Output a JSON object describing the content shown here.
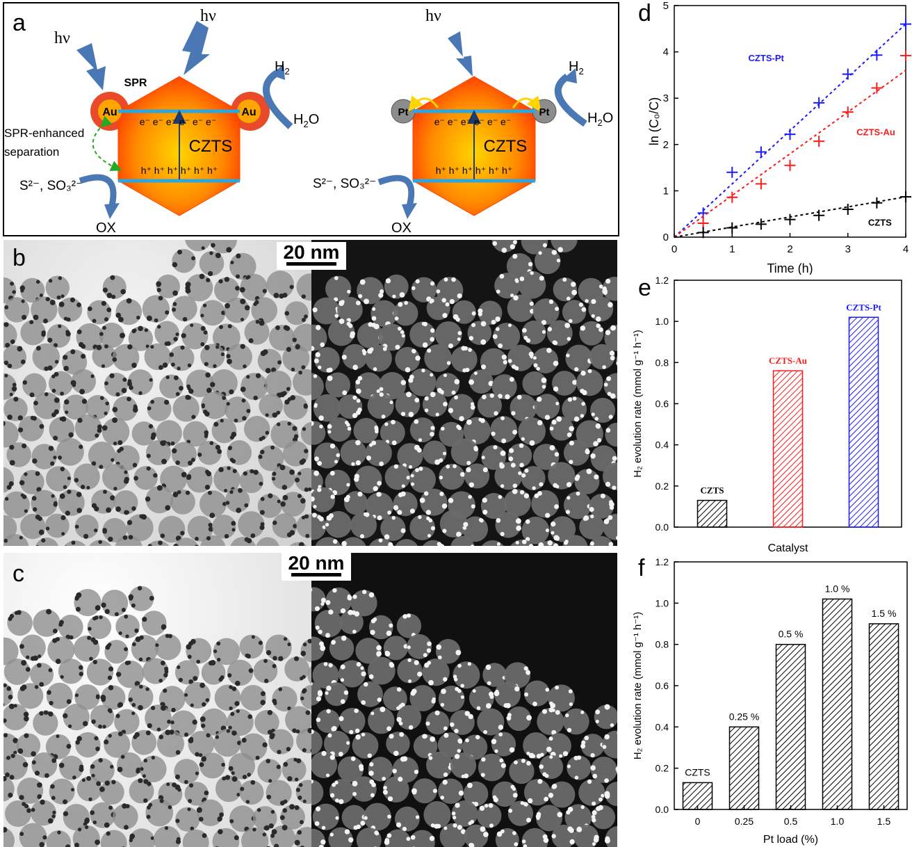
{
  "panels": {
    "a": "a",
    "b": "b",
    "c": "c",
    "d": "d",
    "e": "e",
    "f": "f"
  },
  "schematic": {
    "hv": "hν",
    "spr": "SPR",
    "au": "Au",
    "pt": "Pt",
    "h2": "H",
    "h2_sub": "2",
    "h2o": "H",
    "h2o_sub": "2",
    "h2o_tail": "O",
    "czts": "CZTS",
    "electrons": "e⁻  e⁻  e⁻   e⁻  e⁻  e⁻",
    "holes": "h⁺ h⁺ h⁺   h⁺ h⁺ h⁺",
    "spr_line1": "SPR-enhanced",
    "spr_line2": "separation",
    "sulfide": "S²⁻, SO₃²⁻",
    "ox": "OX"
  },
  "scale_bar": "20 nm",
  "colors": {
    "blue": "#1a1aff",
    "red": "#ff1a1a",
    "black": "#000000",
    "hex_orange": "#ff6a00",
    "au_orange": "#ff9900",
    "pt_grey": "#8c8c8c",
    "band_blue": "#2aa7e0",
    "arrow_blue": "#4a78b5"
  },
  "chart_data": [
    {
      "id": "d",
      "type": "scatter",
      "xlabel": "Time (h)",
      "ylabel": "ln (C₀/C)",
      "xlim": [
        0,
        4
      ],
      "ylim": [
        0,
        5
      ],
      "xticks": [
        "0",
        "1",
        "2",
        "3",
        "4"
      ],
      "yticks": [
        "0",
        "1",
        "2",
        "3",
        "4",
        "5"
      ],
      "series": [
        {
          "name": "CZTS-Pt",
          "color": "#1a1aff",
          "x": [
            0,
            0.5,
            1,
            1.5,
            2,
            2.5,
            3,
            3.5,
            4
          ],
          "y": [
            0,
            0.52,
            1.4,
            1.84,
            2.22,
            2.9,
            3.52,
            3.93,
            4.6
          ],
          "fit_end": 4.6
        },
        {
          "name": "CZTS-Au",
          "color": "#ff1a1a",
          "x": [
            0,
            0.5,
            1,
            1.5,
            2,
            2.5,
            3,
            3.5,
            4
          ],
          "y": [
            0,
            0.3,
            0.86,
            1.15,
            1.55,
            2.07,
            2.7,
            3.22,
            3.92
          ],
          "fit_end": 3.6
        },
        {
          "name": "CZTS",
          "color": "#000000",
          "x": [
            0,
            0.5,
            1,
            1.5,
            2,
            2.5,
            3,
            3.5,
            4
          ],
          "y": [
            0,
            0.1,
            0.2,
            0.28,
            0.38,
            0.47,
            0.6,
            0.74,
            0.87
          ],
          "fit_end": 0.87
        }
      ]
    },
    {
      "id": "e",
      "type": "bar",
      "xlabel": "Catalyst",
      "ylabel": "H₂ evolution rate (mmol g⁻¹ h⁻¹)",
      "ylim": [
        0,
        1.2
      ],
      "yticks": [
        "0.0",
        "0.2",
        "0.4",
        "0.6",
        "0.8",
        "1.0",
        "1.2"
      ],
      "categories": [
        "CZTS",
        "CZTS-Au",
        "CZTS-Pt"
      ],
      "values": [
        0.13,
        0.76,
        1.02
      ],
      "colors": [
        "#000000",
        "#ff1a1a",
        "#1a1aff"
      ]
    },
    {
      "id": "f",
      "type": "bar",
      "xlabel": "Pt load (%)",
      "ylabel": "H₂ evolution rate (mmol g⁻¹ h⁻¹)",
      "ylim": [
        0,
        1.2
      ],
      "yticks": [
        "0.0",
        "0.2",
        "0.4",
        "0.6",
        "0.8",
        "1.0",
        "1.2"
      ],
      "categories": [
        "0",
        "0.25",
        "0.5",
        "1.0",
        "1.5"
      ],
      "bar_labels": [
        "CZTS",
        "0.25 %",
        "0.5 %",
        "1.0 %",
        "1.5 %"
      ],
      "values": [
        0.13,
        0.4,
        0.8,
        1.02,
        0.9
      ]
    }
  ]
}
